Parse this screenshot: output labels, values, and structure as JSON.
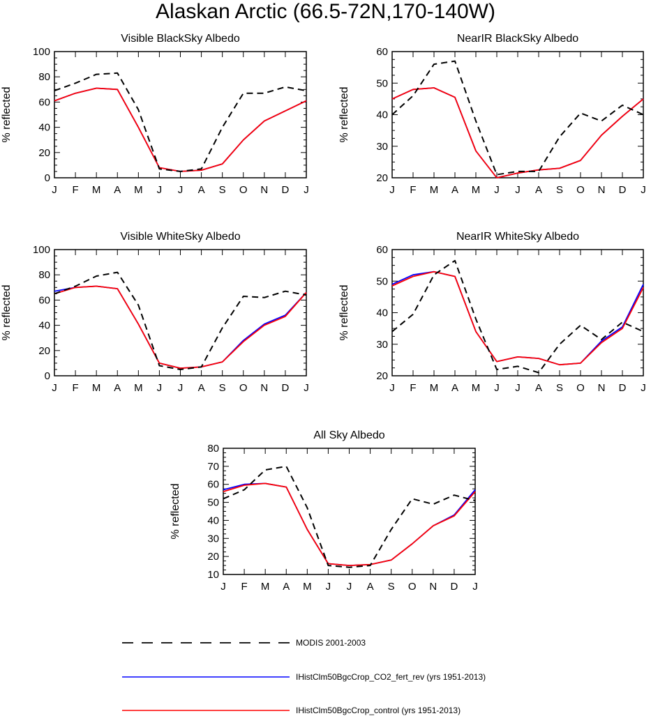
{
  "title": "Alaskan Arctic (66.5-72N,170-140W)",
  "months": [
    "J",
    "F",
    "M",
    "A",
    "M",
    "J",
    "J",
    "A",
    "S",
    "O",
    "N",
    "D",
    "J"
  ],
  "ylabel": "% reflected",
  "colors": {
    "obs": "#000000",
    "co2_fert_rev": "#0000ff",
    "control": "#ff0000"
  },
  "legend": [
    {
      "name": "MODIS 2001-2003",
      "style": "dashed",
      "color": "#000000"
    },
    {
      "name": "IHistClm50BgcCrop_CO2_fert_rev (yrs 1951-2013)",
      "style": "solid",
      "color": "#0000ff"
    },
    {
      "name": "IHistClm50BgcCrop_control (yrs 1951-2013)",
      "style": "solid",
      "color": "#ff0000"
    }
  ],
  "chart_data": [
    {
      "type": "line",
      "title": "Visible BlackSky Albedo",
      "ylabel": "% reflected",
      "ylim": [
        0,
        100
      ],
      "yticks": [
        0,
        20,
        40,
        60,
        80,
        100
      ],
      "series": [
        {
          "name": "MODIS 2001-2003",
          "values": [
            69,
            75,
            82,
            83,
            54,
            7,
            5,
            7,
            40,
            67,
            67,
            72,
            69
          ]
        },
        {
          "name": "IHistClm50BgcCrop_CO2_fert_rev (yrs 1951-2013)",
          "values": [
            61,
            67,
            71,
            70,
            40,
            8,
            5,
            6,
            11,
            30,
            45,
            53,
            61
          ]
        },
        {
          "name": "IHistClm50BgcCrop_control (yrs 1951-2013)",
          "values": [
            61,
            67,
            71,
            70,
            40,
            8,
            5,
            6,
            11,
            30,
            45,
            53,
            61
          ]
        }
      ]
    },
    {
      "type": "line",
      "title": "NearIR BlackSky Albedo",
      "ylabel": "% reflected",
      "ylim": [
        20,
        60
      ],
      "yticks": [
        20,
        30,
        40,
        50,
        60
      ],
      "series": [
        {
          "name": "MODIS 2001-2003",
          "values": [
            40,
            46,
            56,
            57,
            38,
            21,
            22,
            22,
            33,
            40.5,
            38,
            43,
            40
          ]
        },
        {
          "name": "IHistClm50BgcCrop_CO2_fert_rev (yrs 1951-2013)",
          "values": [
            45,
            48,
            48.5,
            45.5,
            28.5,
            20,
            21.5,
            22.5,
            23,
            25.5,
            33.5,
            39.5,
            45
          ]
        },
        {
          "name": "IHistClm50BgcCrop_control (yrs 1951-2013)",
          "values": [
            45,
            48,
            48.5,
            45.5,
            28.5,
            20,
            21.5,
            22.5,
            23,
            25.5,
            33.5,
            39.5,
            45
          ]
        }
      ]
    },
    {
      "type": "line",
      "title": "Visible WhiteSky Albedo",
      "ylabel": "% reflected",
      "ylim": [
        0,
        100
      ],
      "yticks": [
        0,
        20,
        40,
        60,
        80,
        100
      ],
      "series": [
        {
          "name": "MODIS 2001-2003",
          "values": [
            65,
            71,
            79,
            82,
            56,
            8,
            5,
            7,
            38,
            63,
            62,
            67,
            64
          ]
        },
        {
          "name": "IHistClm50BgcCrop_CO2_fert_rev (yrs 1951-2013)",
          "values": [
            67,
            70,
            71,
            69,
            41,
            10,
            6,
            7,
            11,
            28,
            41,
            48,
            66
          ]
        },
        {
          "name": "IHistClm50BgcCrop_control (yrs 1951-2013)",
          "values": [
            65,
            70,
            71,
            69,
            41,
            10,
            6,
            7,
            11,
            27,
            40,
            47,
            66
          ]
        }
      ]
    },
    {
      "type": "line",
      "title": "NearIR WhiteSky Albedo",
      "ylabel": "% reflected",
      "ylim": [
        20,
        60
      ],
      "yticks": [
        20,
        30,
        40,
        50,
        60
      ],
      "series": [
        {
          "name": "MODIS 2001-2003",
          "values": [
            34,
            39.5,
            52,
            56.5,
            38,
            22,
            23,
            21,
            30,
            36,
            31.5,
            37,
            34
          ]
        },
        {
          "name": "IHistClm50BgcCrop_CO2_fert_rev (yrs 1951-2013)",
          "values": [
            49,
            52,
            53,
            51.5,
            34,
            24.5,
            26,
            25.5,
            23.5,
            24,
            31,
            35.5,
            49
          ]
        },
        {
          "name": "IHistClm50BgcCrop_control (yrs 1951-2013)",
          "values": [
            48.5,
            51.5,
            53,
            51.5,
            34,
            24.5,
            26,
            25.5,
            23.5,
            24,
            30.5,
            35,
            48
          ]
        }
      ]
    },
    {
      "type": "line",
      "title": "All Sky Albedo",
      "ylabel": "% reflected",
      "ylim": [
        10,
        80
      ],
      "yticks": [
        10,
        20,
        30,
        40,
        50,
        60,
        70,
        80
      ],
      "series": [
        {
          "name": "MODIS 2001-2003",
          "values": [
            52,
            57,
            68,
            70,
            47,
            15,
            14,
            15,
            35,
            52,
            49,
            54,
            51
          ]
        },
        {
          "name": "IHistClm50BgcCrop_CO2_fert_rev (yrs 1951-2013)",
          "values": [
            57,
            60,
            60.5,
            58.5,
            35,
            16,
            15,
            15.5,
            18,
            27,
            37,
            43,
            57
          ]
        },
        {
          "name": "IHistClm50BgcCrop_control (yrs 1951-2013)",
          "values": [
            56,
            59.5,
            60.5,
            58.5,
            35,
            16,
            15,
            15.5,
            18,
            27,
            37,
            42.5,
            56
          ]
        }
      ]
    }
  ]
}
